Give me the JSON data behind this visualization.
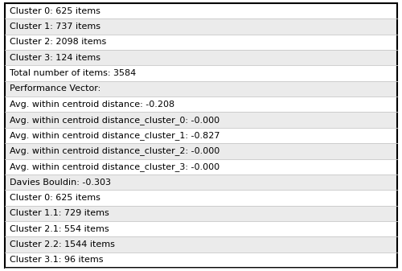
{
  "rows": [
    "Cluster 0: 625 items",
    "Cluster 1: 737 items",
    "Cluster 2: 2098 items",
    "Cluster 3: 124 items",
    "Total number of items: 3584",
    "Performance Vector:",
    "Avg. within centroid distance: -0.208",
    "Avg. within centroid distance_cluster_0: -0.000",
    "Avg. within centroid distance_cluster_1: -0.827",
    "Avg. within centroid distance_cluster_2: -0.000",
    "Avg. within centroid distance_cluster_3: -0.000",
    "Davies Bouldin: -0.303",
    "Cluster 0: 625 items",
    "Cluster 1.1: 729 items",
    "Cluster 2.1: 554 items",
    "Cluster 2.2: 1544 items",
    "Cluster 3.1: 96 items"
  ],
  "bg_color": "#ffffff",
  "text_color": "#000000",
  "border_color": "#000000",
  "row_bg_odd": "#ebebeb",
  "row_bg_even": "#ffffff",
  "font_size": 8.0,
  "fig_width": 5.0,
  "fig_height": 3.37,
  "dpi": 100
}
